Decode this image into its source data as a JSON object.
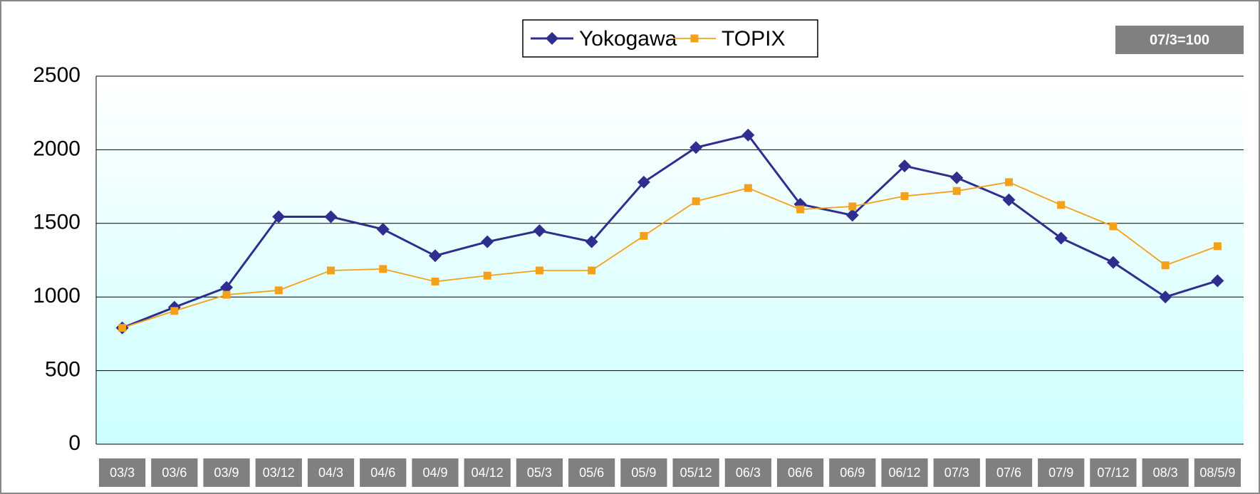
{
  "chart_data": {
    "type": "line",
    "annotation": "07/3=100",
    "categories": [
      "03/3",
      "03/6",
      "03/9",
      "03/12",
      "04/3",
      "04/6",
      "04/9",
      "04/12",
      "05/3",
      "05/6",
      "05/9",
      "05/12",
      "06/3",
      "06/6",
      "06/9",
      "06/12",
      "07/3",
      "07/6",
      "07/9",
      "07/12",
      "08/3",
      "08/5/9"
    ],
    "series": [
      {
        "name": "Yokogawa",
        "color": "#2e2e8f",
        "marker": "diamond",
        "values": [
          790,
          930,
          1065,
          1545,
          1545,
          1460,
          1280,
          1375,
          1450,
          1375,
          1780,
          2015,
          2100,
          1630,
          1555,
          1890,
          1810,
          1660,
          1400,
          1235,
          1000,
          1110
        ]
      },
      {
        "name": "TOPIX",
        "color": "#f5a01a",
        "marker": "square",
        "values": [
          790,
          905,
          1015,
          1045,
          1180,
          1190,
          1105,
          1145,
          1180,
          1180,
          1415,
          1650,
          1740,
          1595,
          1615,
          1685,
          1720,
          1780,
          1625,
          1480,
          1215,
          1345
        ]
      }
    ],
    "ylim": [
      0,
      2500
    ],
    "yticks": [
      0,
      500,
      1000,
      1500,
      2000,
      2500
    ],
    "grid": true,
    "legend": "top"
  }
}
